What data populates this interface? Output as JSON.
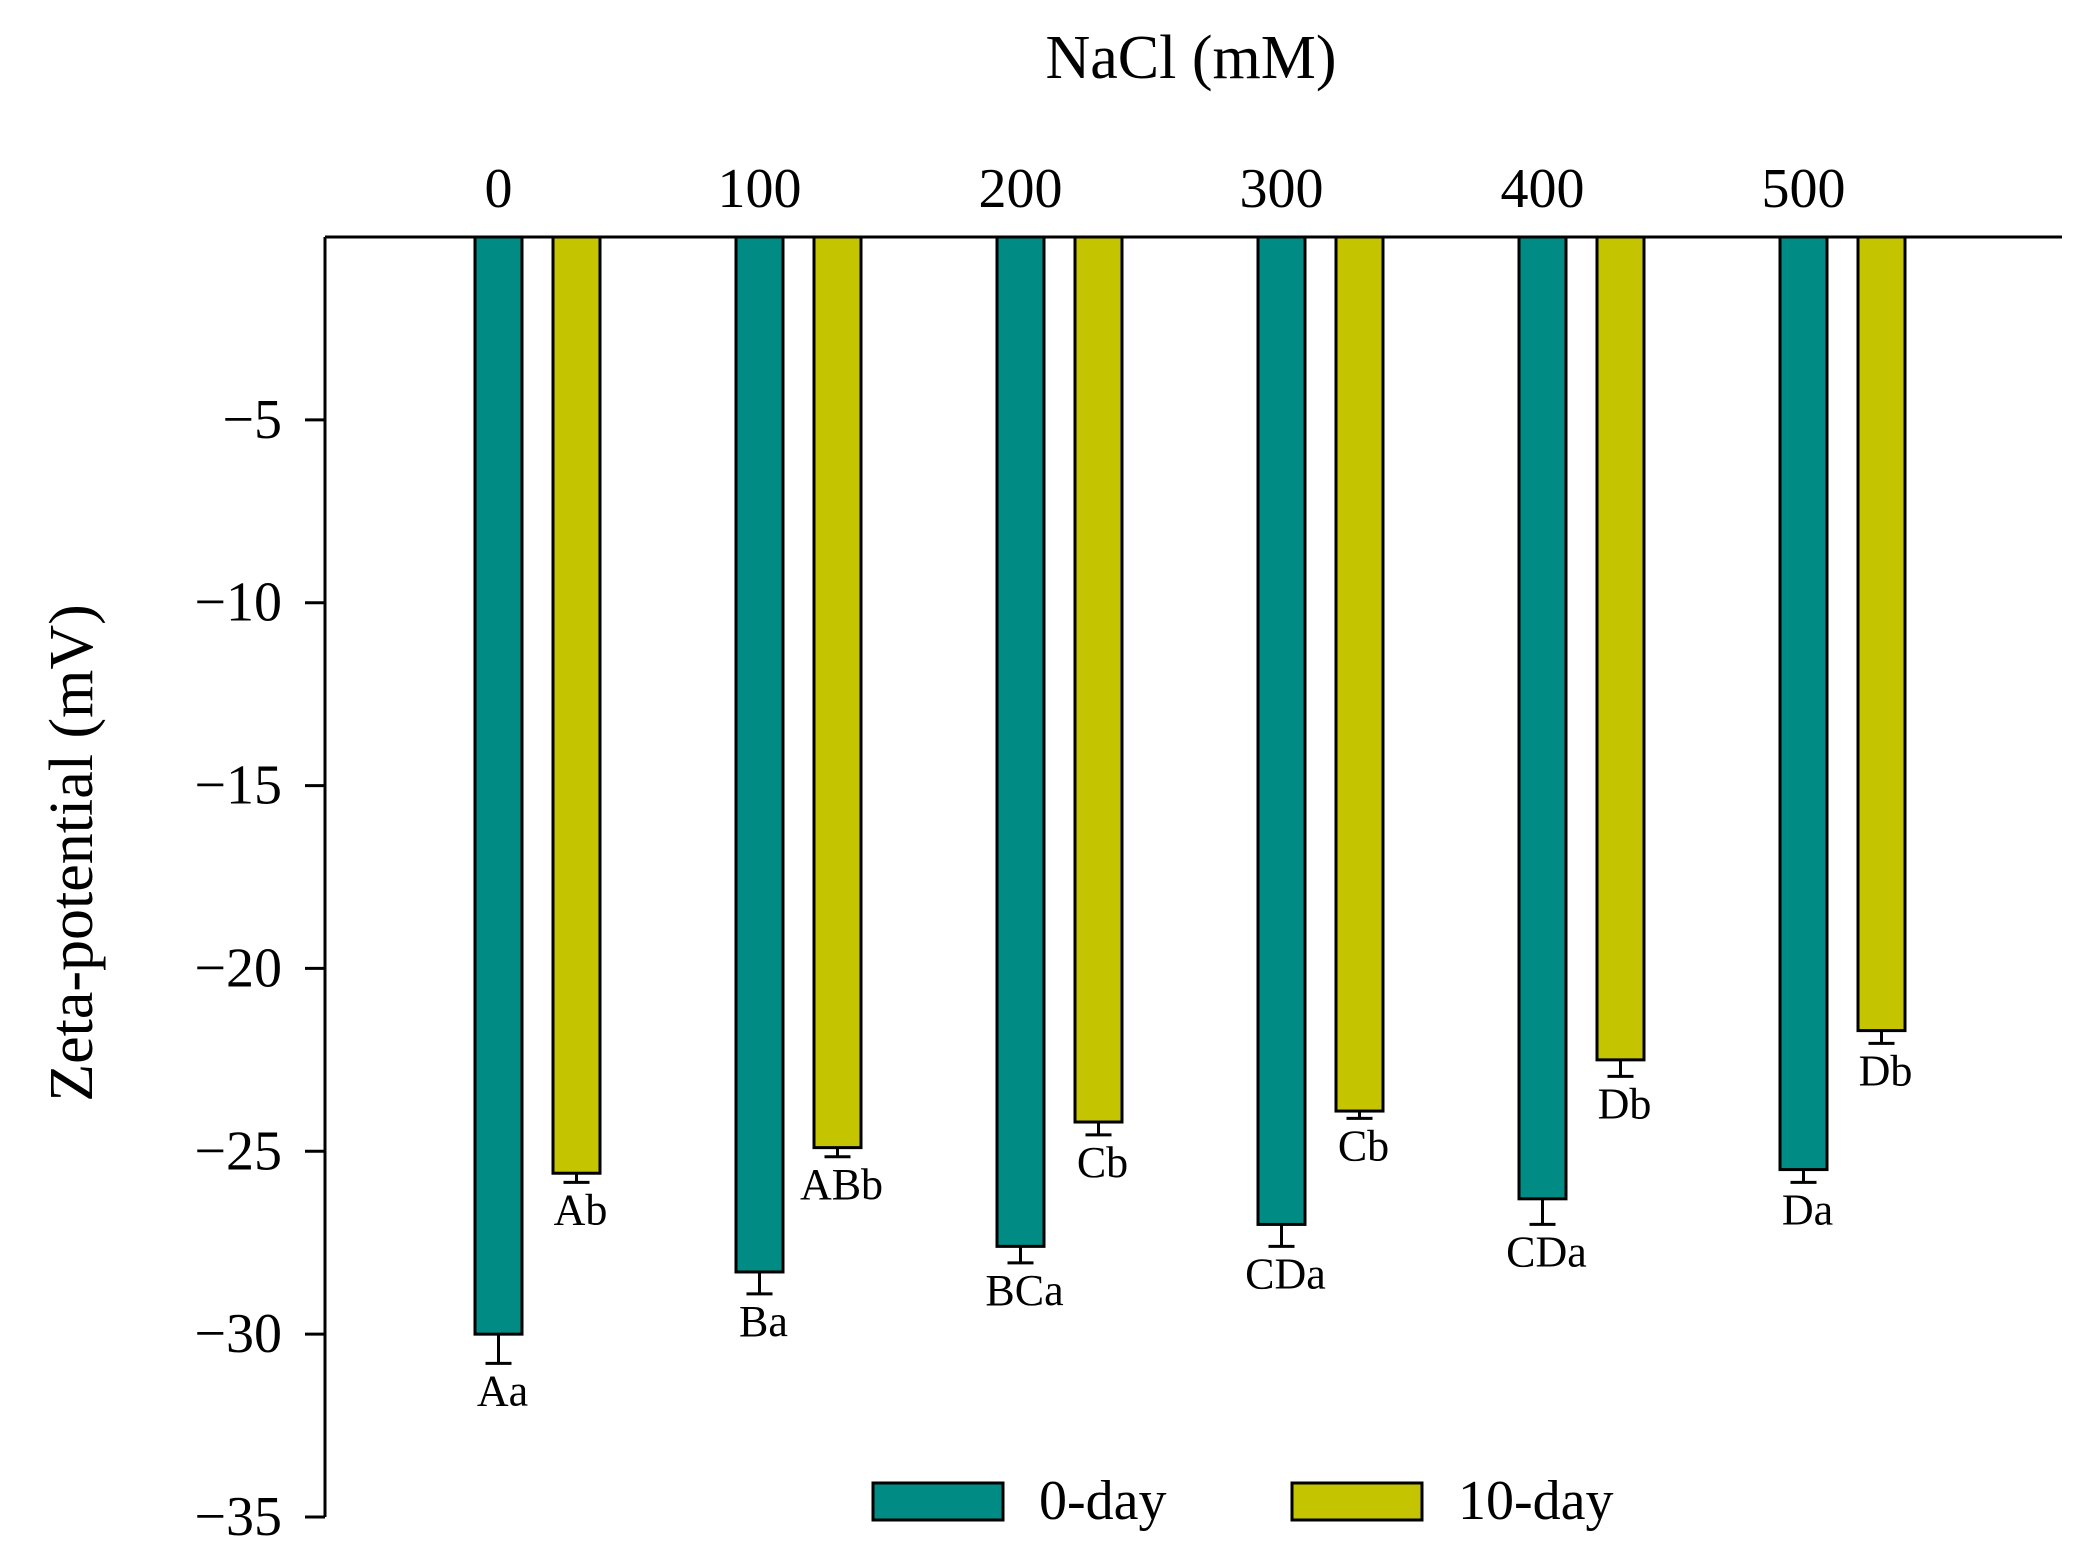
{
  "chart_data": {
    "type": "bar",
    "title": "",
    "xlabel": "NaCl (mM)",
    "ylabel": "Zeta-potential (mV)",
    "ylim": [
      -35,
      0
    ],
    "yticks": [
      -5,
      -10,
      -15,
      -20,
      -25,
      -30,
      -35
    ],
    "ytick_labels": [
      "−5",
      "−10",
      "−15",
      "−20",
      "−25",
      "−30",
      "−35"
    ],
    "categories": [
      "0",
      "100",
      "200",
      "300",
      "400",
      "500"
    ],
    "x_axis_position": "top",
    "legend_position": "bottom-center",
    "grid": false,
    "series": [
      {
        "name": "0-day",
        "color": "#008B85",
        "values": [
          -30.0,
          -28.3,
          -27.6,
          -27.0,
          -26.3,
          -25.5
        ],
        "errors": [
          0.8,
          0.6,
          0.45,
          0.6,
          0.7,
          0.35
        ],
        "labels": [
          "Aa",
          "Ba",
          "BCa",
          "CDa",
          "CDa",
          "Da"
        ]
      },
      {
        "name": "10-day",
        "color": "#C4C400",
        "values": [
          -25.6,
          -24.9,
          -24.2,
          -23.9,
          -22.5,
          -21.7
        ],
        "errors": [
          0.25,
          0.25,
          0.35,
          0.2,
          0.45,
          0.35
        ],
        "labels": [
          "Ab",
          "ABb",
          "Cb",
          "Cb",
          "Db",
          "Db"
        ]
      }
    ]
  }
}
